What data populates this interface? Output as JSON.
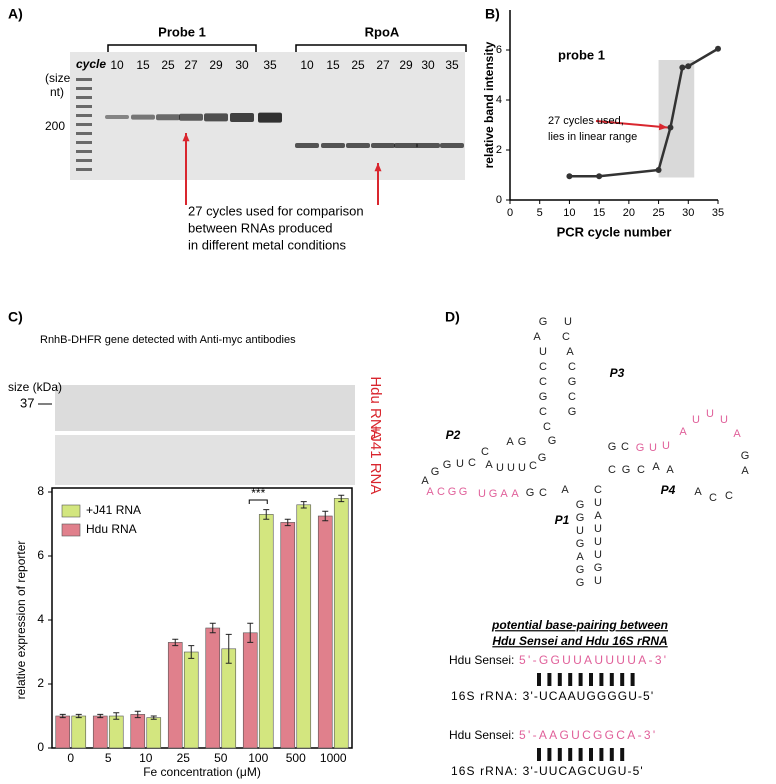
{
  "panel_a": {
    "label": "A)",
    "groups": [
      "Probe 1",
      "RpoA"
    ],
    "cycle_label": "cycle",
    "cycles_probe": [
      10,
      15,
      25,
      27,
      29,
      30,
      35
    ],
    "cycles_rpoa": [
      10,
      15,
      25,
      27,
      29,
      30,
      35
    ],
    "size_label": [
      "(size",
      "nt)"
    ],
    "marker": 200,
    "annotation": [
      "27 cycles used for comparison",
      "between RNAs produced",
      "in different metal conditions"
    ]
  },
  "panel_b": {
    "label": "B)"
  },
  "panel_c": {
    "label": "C)",
    "subtitle": "RnhB-DHFR gene detected with Anti-myc antibodies",
    "size_label": "size (kDa)",
    "marker": 37,
    "blot_labels": [
      "Hdu RNA",
      "+J41 RNA"
    ]
  },
  "panel_d": {
    "label": "D)",
    "stems": [
      "P3",
      "P2",
      "P1",
      "P4"
    ],
    "segments": [
      {
        "bases": [
          "G",
          "U"
        ],
        "color": "#222"
      },
      {
        "bases": [
          "A",
          "U",
          "C",
          "C",
          "G",
          "C",
          "C",
          "G"
        ],
        "color": "#222"
      },
      {
        "bases": [
          "C",
          "A",
          "C",
          "G",
          "C",
          "G"
        ],
        "color": "#222"
      },
      {
        "bases": [
          "A",
          "G",
          "G",
          "U",
          "C"
        ],
        "color": "#222"
      },
      {
        "bases": [
          "C"
        ],
        "color": "#222"
      },
      {
        "bases": [
          "A",
          "U",
          "U",
          "U",
          "C",
          "G"
        ],
        "color": "#222"
      },
      {
        "bases": [
          "A",
          "G"
        ],
        "color": "#222"
      },
      {
        "bases": [
          "A",
          "C",
          "G",
          "G",
          "U",
          "G",
          "A",
          "A"
        ],
        "color": "#e0609a"
      },
      {
        "bases": [
          "G",
          "C"
        ],
        "color": "#222"
      },
      {
        "bases": [
          "A"
        ],
        "color": "#222"
      },
      {
        "bases": [
          "G",
          "G",
          "U",
          "G",
          "A",
          "G",
          "G"
        ],
        "color": "#222"
      },
      {
        "bases": [
          "C",
          "U",
          "A",
          "U",
          "U",
          "U",
          "G",
          "U"
        ],
        "color": "#222"
      },
      {
        "bases": [
          "G",
          "C"
        ],
        "color": "#222"
      },
      {
        "bases": [
          "G",
          "U",
          "U"
        ],
        "color": "#e0609a"
      },
      {
        "bases": [
          "A",
          "U",
          "U",
          "U",
          "A"
        ],
        "color": "#e0609a"
      },
      {
        "bases": [
          "G",
          "A"
        ],
        "color": "#222"
      },
      {
        "bases": [
          "C",
          "C",
          "A"
        ],
        "color": "#222"
      },
      {
        "bases": [
          "C",
          "G",
          "C",
          "A",
          "A"
        ],
        "color": "#222"
      }
    ],
    "pairing_title": [
      "potential base-pairing between",
      "Hdu Sensei and  Hdu 16S rRNA"
    ],
    "pairings": [
      {
        "top_label": "Hdu Sensei:",
        "top_seq": "5'-GGUUAUUUUA-3'",
        "bottom": "16S rRNA: 3'-UCAAUGGGGU-5'"
      },
      {
        "top_label": "Hdu Sensei:",
        "top_seq": "5'-AAGUCGGCA-3'",
        "bottom": "16S rRNA: 3'-UUCAGCUGU-5'"
      }
    ]
  },
  "chart_data": [
    {
      "type": "line",
      "title": "probe 1",
      "xlabel": "PCR cycle number",
      "ylabel": "relative band intensity",
      "x": [
        10,
        15,
        25,
        27,
        29,
        30,
        35
      ],
      "series": [
        {
          "values": [
            0.95,
            0.95,
            1.2,
            2.9,
            5.3,
            5.35,
            6.05
          ],
          "color": "#333333"
        }
      ],
      "xlim": [
        0,
        35
      ],
      "ylim": [
        0,
        7.6
      ],
      "xticks": [
        0,
        5,
        10,
        15,
        20,
        25,
        30,
        35
      ],
      "yticks": [
        0,
        2,
        4,
        6
      ],
      "highlight": {
        "xlim": [
          25,
          31
        ],
        "ylim": [
          0.9,
          5.6
        ],
        "color": "#d9d9d9"
      },
      "annotation": [
        "27 cycles used,",
        "lies in linear range"
      ]
    },
    {
      "type": "bar",
      "xlabel": "Fe concentration (μM)",
      "ylabel": "relative expression of reporter",
      "categories": [
        "0",
        "5",
        "10",
        "25",
        "50",
        "100",
        "500",
        "1000"
      ],
      "series": [
        {
          "name": "Hdu RNA",
          "color": "#e0808c",
          "values": [
            1,
            1,
            1.05,
            3.3,
            3.75,
            3.6,
            7.05,
            7.25
          ],
          "errors": [
            0.05,
            0.05,
            0.1,
            0.1,
            0.15,
            0.3,
            0.1,
            0.15
          ]
        },
        {
          "name": "+J41 RNA",
          "color": "#d3e67f",
          "values": [
            1,
            1,
            0.95,
            3.0,
            3.1,
            7.3,
            7.6,
            7.8
          ],
          "errors": [
            0.05,
            0.1,
            0.05,
            0.2,
            0.45,
            0.15,
            0.1,
            0.1
          ]
        }
      ],
      "ylim": [
        0,
        8
      ],
      "yticks": [
        0,
        2,
        4,
        6,
        8
      ],
      "annotation": {
        "text": "***",
        "category": "100"
      }
    }
  ]
}
